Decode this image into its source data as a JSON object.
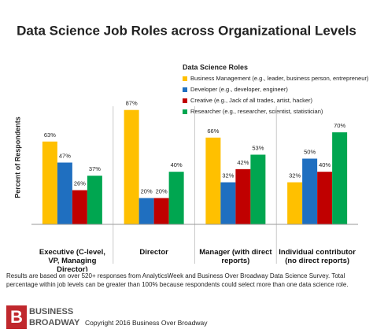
{
  "chart_data": {
    "type": "bar",
    "title": "Data Science Job Roles across Organizational Levels",
    "ylabel": "Percent of Respondents",
    "legend_title": "Data Science Roles",
    "categories": [
      "Executive (C-level, VP, Managing Director)",
      "Director",
      "Manager (with direct reports)",
      "Individual contributor (no direct reports)"
    ],
    "series": [
      {
        "name": "Business Management (e.g., leader, business person, entrepreneur)",
        "color": "#FFC000",
        "values": [
          63,
          87,
          66,
          32
        ],
        "value_labels": [
          "63%",
          "87%",
          "66%",
          "32%"
        ]
      },
      {
        "name": "Developer (e.g., developer, engineer)",
        "color": "#1F6FC0",
        "values": [
          47,
          20,
          32,
          50
        ],
        "value_labels": [
          "47%",
          "20%",
          "32%",
          "50%"
        ]
      },
      {
        "name": "Creative (e.g., Jack of all trades, artist, hacker)",
        "color": "#C00000",
        "values": [
          26,
          20,
          42,
          40
        ],
        "value_labels": [
          "26%",
          "20%",
          "42%",
          "40%"
        ]
      },
      {
        "name": "Researcher (e.g., researcher, scientist, statistician)",
        "color": "#00A650",
        "values": [
          37,
          40,
          53,
          70
        ],
        "value_labels": [
          "37%",
          "40%",
          "53%",
          "70%"
        ]
      }
    ],
    "ylim": [
      0,
      100
    ]
  },
  "note": "Results are based on over 520+ responses from AnalyticsWeek and Business Over Broadway Data Science Survey.  Total percentage within job levels can be greater than 100% because respondents could select more than one data science role.",
  "logo": {
    "icon": "B",
    "line1": "BUSINESS",
    "line2": "BROADWAY"
  },
  "copyright": "Copyright 2016 Business Over Broadway"
}
